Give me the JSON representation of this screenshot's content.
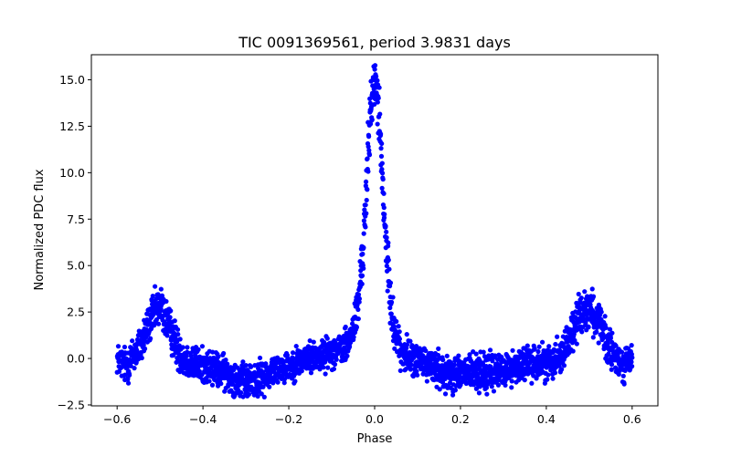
{
  "chart_data": {
    "type": "scatter",
    "title": "TIC 0091369561, period 3.9831 days",
    "xlabel": "Phase",
    "ylabel": "Normalized PDC flux",
    "xlim": [
      -0.66,
      0.66
    ],
    "ylim": [
      -2.55,
      16.35
    ],
    "xticks": [
      -0.6,
      -0.4,
      -0.2,
      0.0,
      0.2,
      0.4,
      0.6
    ],
    "xtick_labels": [
      "−0.6",
      "−0.4",
      "−0.2",
      "0.0",
      "0.2",
      "0.4",
      "0.6"
    ],
    "yticks": [
      -2.5,
      0.0,
      2.5,
      5.0,
      7.5,
      10.0,
      12.5,
      15.0
    ],
    "ytick_labels": [
      "−2.5",
      "0.0",
      "2.5",
      "5.0",
      "7.5",
      "10.0",
      "12.5",
      "15.0"
    ],
    "grid": false,
    "legend": false,
    "marker_color": "#0000ff",
    "series": [
      {
        "x": [
          -0.6,
          -0.58,
          -0.56,
          -0.54,
          -0.52,
          -0.5,
          -0.48,
          -0.46,
          -0.44,
          -0.42,
          -0.4,
          -0.38,
          -0.36,
          -0.34,
          -0.32,
          -0.3,
          -0.28,
          -0.26,
          -0.24,
          -0.22,
          -0.2,
          -0.18,
          -0.16,
          -0.14,
          -0.12,
          -0.1,
          -0.08,
          -0.06,
          -0.04,
          -0.03,
          -0.02,
          -0.015,
          -0.01,
          -0.005,
          0.0,
          0.005,
          0.01,
          0.015,
          0.02,
          0.03,
          0.04,
          0.06,
          0.08,
          0.1,
          0.12,
          0.14,
          0.16,
          0.18,
          0.2,
          0.22,
          0.24,
          0.26,
          0.28,
          0.3,
          0.32,
          0.34,
          0.36,
          0.38,
          0.4,
          0.42,
          0.44,
          0.46,
          0.48,
          0.5,
          0.52,
          0.54,
          0.56,
          0.58,
          0.6
        ],
        "y": [
          0.0,
          -0.4,
          0.2,
          1.0,
          2.2,
          2.9,
          1.8,
          0.6,
          -0.1,
          -0.3,
          -0.4,
          -0.5,
          -0.7,
          -0.9,
          -1.1,
          -1.3,
          -1.2,
          -1.0,
          -0.7,
          -0.5,
          -0.4,
          -0.2,
          0.0,
          0.1,
          0.2,
          0.4,
          0.5,
          0.8,
          2.5,
          5.0,
          8.5,
          11.0,
          13.2,
          14.5,
          14.8,
          14.5,
          13.2,
          11.0,
          8.5,
          5.0,
          2.3,
          0.4,
          0.1,
          -0.1,
          -0.3,
          -0.5,
          -0.7,
          -0.8,
          -0.8,
          -0.8,
          -0.7,
          -0.8,
          -0.7,
          -0.6,
          -0.5,
          -0.3,
          -0.3,
          -0.2,
          -0.2,
          0.0,
          0.4,
          1.4,
          2.5,
          2.8,
          2.0,
          0.8,
          0.0,
          -0.3,
          0.0
        ],
        "spread": [
          0.9,
          1.1,
          1.1,
          1.2,
          1.2,
          1.2,
          1.2,
          1.2,
          1.1,
          1.0,
          1.0,
          1.0,
          1.0,
          1.0,
          1.0,
          1.0,
          1.0,
          1.0,
          0.9,
          0.9,
          0.9,
          0.9,
          0.9,
          0.9,
          0.9,
          0.9,
          0.9,
          1.0,
          1.3,
          1.5,
          1.7,
          1.8,
          1.8,
          1.5,
          1.2,
          1.5,
          1.8,
          1.8,
          1.7,
          1.5,
          1.2,
          1.0,
          1.0,
          1.0,
          1.0,
          1.0,
          1.0,
          1.1,
          1.1,
          1.1,
          1.1,
          1.1,
          1.1,
          1.0,
          1.0,
          1.0,
          1.0,
          1.0,
          1.0,
          1.0,
          1.1,
          1.2,
          1.2,
          1.2,
          1.2,
          1.2,
          1.1,
          1.0,
          0.9
        ]
      }
    ]
  }
}
